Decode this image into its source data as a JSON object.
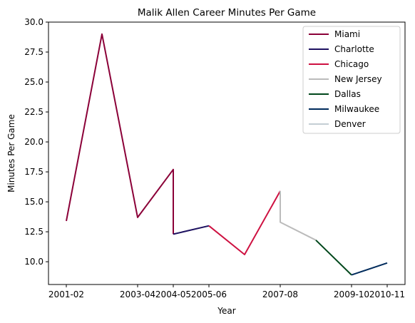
{
  "chart_data": {
    "type": "line",
    "title": "Malik Allen Career Minutes Per Game",
    "xlabel": "Year",
    "ylabel": "Minutes Per Game",
    "x_ticks": [
      "2001-02",
      "2003-04",
      "2004-05",
      "2005-06",
      "2007-08",
      "2009-10",
      "2010-11"
    ],
    "y_ticks": [
      "10.0",
      "12.5",
      "15.0",
      "17.5",
      "20.0",
      "22.5",
      "25.0",
      "27.5",
      "30.0"
    ],
    "ylim": [
      8.1,
      30.0
    ],
    "grid": false,
    "legend_position": "top-right",
    "series": [
      {
        "name": "Miami",
        "color": "#8b0038",
        "points": [
          {
            "x": "2001-02",
            "y": 13.4
          },
          {
            "x": "2002-03",
            "y": 29.0
          },
          {
            "x": "2003-04",
            "y": 13.7
          },
          {
            "x": "2004-05",
            "y": 17.7
          },
          {
            "x": "2004-05",
            "y": 12.3
          }
        ]
      },
      {
        "name": "Charlotte",
        "color": "#1d1160",
        "points": [
          {
            "x": "2004-05",
            "y": 12.3
          },
          {
            "x": "2005-06",
            "y": 13.0
          }
        ]
      },
      {
        "name": "Chicago",
        "color": "#ce1141",
        "points": [
          {
            "x": "2005-06",
            "y": 13.0
          },
          {
            "x": "2006-07",
            "y": 10.6
          },
          {
            "x": "2007-08",
            "y": 15.9
          }
        ]
      },
      {
        "name": "New Jersey",
        "color": "#bbbbbb",
        "points": [
          {
            "x": "2007-08",
            "y": 15.9
          },
          {
            "x": "2007-08",
            "y": 13.3
          },
          {
            "x": "2008-09",
            "y": 11.8
          }
        ]
      },
      {
        "name": "Dallas",
        "color": "#00471b",
        "points": [
          {
            "x": "2008-09",
            "y": 11.8
          },
          {
            "x": "2009-10",
            "y": 8.9
          }
        ]
      },
      {
        "name": "Milwaukee",
        "color": "#002b5c",
        "points": [
          {
            "x": "2009-10",
            "y": 8.9
          },
          {
            "x": "2010-11",
            "y": 9.9
          }
        ]
      },
      {
        "name": "Denver",
        "color": "#c4ced4",
        "points": []
      }
    ]
  }
}
